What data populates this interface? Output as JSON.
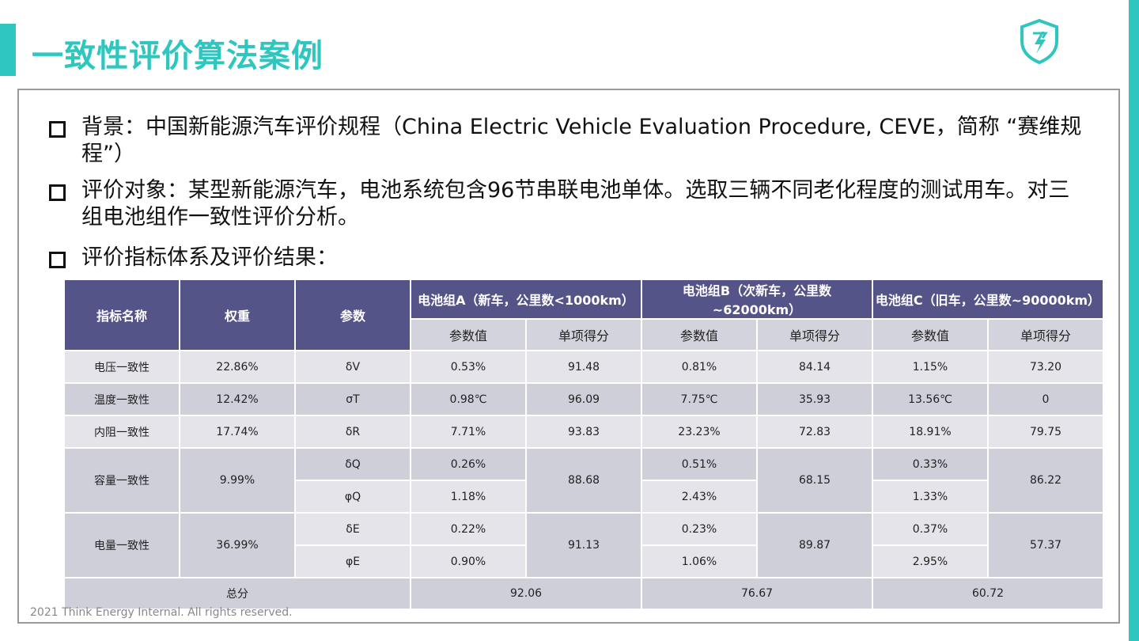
{
  "title": "一致性评价算法案例",
  "colors": {
    "accent": "#2fc6c0",
    "header": "#555489"
  },
  "bullets": [
    "背景：中国新能源汽车评价规程（China Electric Vehicle Evaluation Procedure, CEVE，简称 “赛维规程”）",
    "评价对象：某型新能源汽车，电池系统包含96节串联电池单体。选取三辆不同老化程度的测试用车。对三组电池组作一致性评价分析。",
    "评价指标体系及评价结果："
  ],
  "table": {
    "headers": {
      "name": "指标名称",
      "weight": "权重",
      "param": "参数",
      "groupA": "电池组A（新车，公里数<1000km）",
      "groupB": "电池组B（次新车，公里数~62000km）",
      "groupC": "电池组C（旧车，公里数~90000km）",
      "paramValue": "参数值",
      "score": "单项得分"
    },
    "rows": {
      "voltage": {
        "name": "电压一致性",
        "weight": "22.86%",
        "param": "δV",
        "a_val": "0.53%",
        "a_score": "91.48",
        "b_val": "0.81%",
        "b_score": "84.14",
        "c_val": "1.15%",
        "c_score": "73.20"
      },
      "temperature": {
        "name": "温度一致性",
        "weight": "12.42%",
        "param": "σT",
        "a_val": "0.98℃",
        "a_score": "96.09",
        "b_val": "7.75℃",
        "b_score": "35.93",
        "c_val": "13.56℃",
        "c_score": "0"
      },
      "resistance": {
        "name": "内阻一致性",
        "weight": "17.74%",
        "param": "δR",
        "a_val": "7.71%",
        "a_score": "93.83",
        "b_val": "23.23%",
        "b_score": "72.83",
        "c_val": "18.91%",
        "c_score": "79.75"
      },
      "capacity": {
        "name": "容量一致性",
        "weight": "9.99%",
        "param1": "δQ",
        "param2": "φQ",
        "a_val1": "0.26%",
        "a_val2": "1.18%",
        "a_score": "88.68",
        "b_val1": "0.51%",
        "b_val2": "2.43%",
        "b_score": "68.15",
        "c_val1": "0.33%",
        "c_val2": "1.33%",
        "c_score": "86.22"
      },
      "energy": {
        "name": "电量一致性",
        "weight": "36.99%",
        "param1": "δE",
        "param2": "φE",
        "a_val1": "0.22%",
        "a_val2": "0.90%",
        "a_score": "91.13",
        "b_val1": "0.23%",
        "b_val2": "1.06%",
        "b_score": "89.87",
        "c_val1": "0.37%",
        "c_val2": "2.95%",
        "c_score": "57.37"
      }
    },
    "total": {
      "label": "总分",
      "a": "92.06",
      "b": "76.67",
      "c": "60.72"
    }
  },
  "footer": "2021 Think Energy Internal. All rights reserved."
}
